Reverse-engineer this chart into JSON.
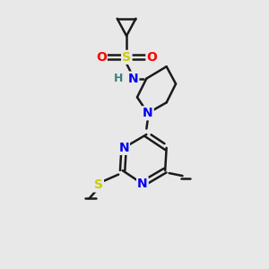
{
  "bg_color": "#e8e8e8",
  "bond_color": "#1a1a1a",
  "atom_colors": {
    "N": "#0000ee",
    "O": "#ff0000",
    "S_sulfonyl": "#cccc00",
    "S_thio": "#cccc00",
    "H": "#3a8080",
    "C": "#1a1a1a"
  },
  "figsize": [
    3.0,
    3.0
  ],
  "dpi": 100,
  "xlim": [
    0,
    10
  ],
  "ylim": [
    0,
    10
  ]
}
